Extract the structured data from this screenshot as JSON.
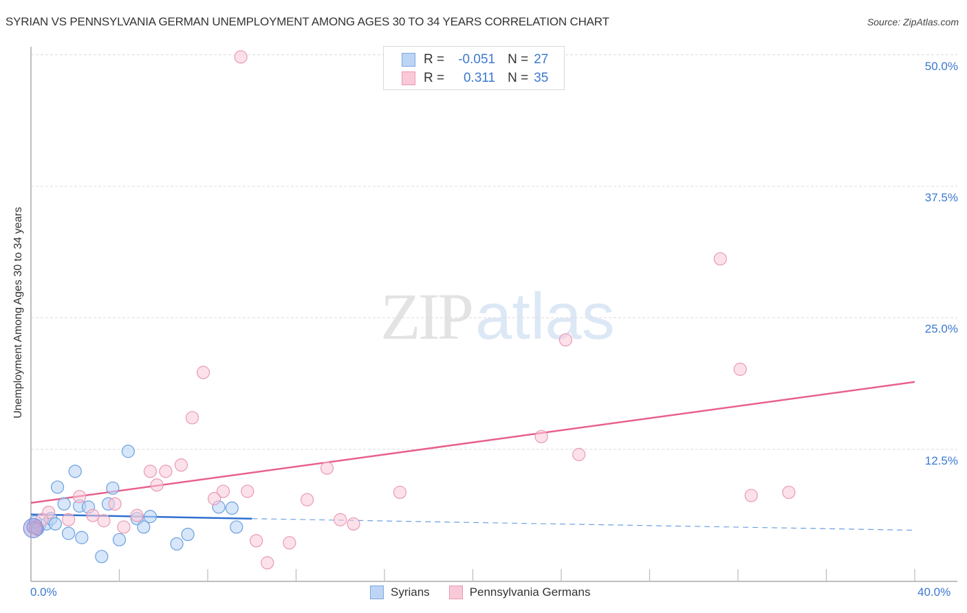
{
  "header": {
    "title": "SYRIAN VS PENNSYLVANIA GERMAN UNEMPLOYMENT AMONG AGES 30 TO 34 YEARS CORRELATION CHART",
    "source": "Source: ZipAtlas.com"
  },
  "watermark": {
    "zip": "ZIP",
    "atlas": "atlas"
  },
  "legend_top": {
    "rows": [
      {
        "r_label": "R =",
        "r_value": "-0.051",
        "n_label": "N =",
        "n_value": "27",
        "color": "#bdd5f5"
      },
      {
        "r_label": "R =",
        "r_value": "0.311",
        "n_label": "N =",
        "n_value": "35",
        "color": "#f9c9d8"
      }
    ]
  },
  "legend_bottom": {
    "items": [
      {
        "label": "Syrians",
        "color": "#bdd5f5"
      },
      {
        "label": "Pennsylvania Germans",
        "color": "#f9c9d8"
      }
    ]
  },
  "axes": {
    "y_label": "Unemployment Among Ages 30 to 34 years",
    "y_ticks": [
      "50.0%",
      "37.5%",
      "25.0%",
      "12.5%"
    ],
    "x_ticks": [
      "0.0%",
      "40.0%"
    ]
  },
  "colors": {
    "blue": "#3b78d0",
    "blue_fill": "#bdd5f5",
    "pink": "#e8608a",
    "pink_fill": "#f9c9d8",
    "tick_text": "#3b78d0"
  },
  "chart_data": {
    "type": "scatter",
    "title": "SYRIAN VS PENNSYLVANIA GERMAN UNEMPLOYMENT AMONG AGES 30 TO 34 YEARS CORRELATION CHART",
    "xlabel": "",
    "ylabel": "Unemployment Among Ages 30 to 34 years",
    "xlim": [
      0,
      40
    ],
    "ylim": [
      0,
      52
    ],
    "x_tick_labels": [
      "0.0%",
      "40.0%"
    ],
    "y_tick_labels": [
      "12.5%",
      "25.0%",
      "37.5%",
      "50.0%"
    ],
    "grid": true,
    "legend_position": "bottom",
    "series": [
      {
        "name": "Syrians",
        "color": "#3b78d0",
        "R": -0.051,
        "N": 27,
        "points": [
          [
            0.1,
            5.1
          ],
          [
            0.4,
            5.3
          ],
          [
            0.7,
            5.4
          ],
          [
            0.9,
            5.9
          ],
          [
            1.1,
            5.4
          ],
          [
            1.2,
            8.9
          ],
          [
            1.5,
            7.3
          ],
          [
            1.7,
            4.5
          ],
          [
            2.0,
            10.4
          ],
          [
            2.2,
            7.1
          ],
          [
            2.3,
            4.1
          ],
          [
            2.6,
            7.0
          ],
          [
            3.2,
            2.3
          ],
          [
            3.5,
            7.3
          ],
          [
            3.7,
            8.8
          ],
          [
            4.0,
            3.9
          ],
          [
            4.4,
            12.3
          ],
          [
            4.8,
            5.9
          ],
          [
            5.1,
            5.1
          ],
          [
            5.4,
            6.1
          ],
          [
            6.6,
            3.5
          ],
          [
            7.1,
            4.4
          ],
          [
            8.5,
            7.0
          ],
          [
            9.1,
            6.9
          ],
          [
            9.3,
            5.1
          ],
          [
            0.2,
            5.6
          ],
          [
            0.3,
            4.9
          ]
        ],
        "trendline": {
          "x": [
            0,
            10
          ],
          "y": [
            6.3,
            5.9
          ],
          "extended_dashed_to": [
            40,
            4.8
          ]
        }
      },
      {
        "name": "Pennsylvania Germans",
        "color": "#e8608a",
        "R": 0.311,
        "N": 35,
        "points": [
          [
            9.5,
            49.8
          ],
          [
            31.2,
            30.6
          ],
          [
            24.2,
            22.9
          ],
          [
            32.1,
            20.1
          ],
          [
            7.8,
            19.8
          ],
          [
            7.3,
            15.5
          ],
          [
            23.1,
            13.7
          ],
          [
            24.8,
            12.0
          ],
          [
            6.8,
            11.0
          ],
          [
            5.4,
            10.4
          ],
          [
            6.1,
            10.4
          ],
          [
            13.4,
            10.7
          ],
          [
            5.7,
            9.1
          ],
          [
            2.2,
            8.0
          ],
          [
            3.8,
            7.3
          ],
          [
            8.7,
            8.5
          ],
          [
            9.8,
            8.5
          ],
          [
            8.3,
            7.8
          ],
          [
            12.5,
            7.7
          ],
          [
            16.7,
            8.4
          ],
          [
            32.6,
            8.1
          ],
          [
            34.3,
            8.4
          ],
          [
            0.8,
            6.5
          ],
          [
            1.7,
            5.8
          ],
          [
            2.8,
            6.2
          ],
          [
            3.3,
            5.7
          ],
          [
            4.8,
            6.2
          ],
          [
            14.0,
            5.8
          ],
          [
            14.6,
            5.4
          ],
          [
            4.2,
            5.1
          ],
          [
            10.2,
            3.8
          ],
          [
            11.7,
            3.6
          ],
          [
            10.7,
            1.7
          ],
          [
            0.5,
            5.8
          ],
          [
            0.2,
            5.0
          ]
        ],
        "trendline": {
          "x": [
            0,
            40
          ],
          "y": [
            7.4,
            18.9
          ]
        }
      }
    ]
  }
}
